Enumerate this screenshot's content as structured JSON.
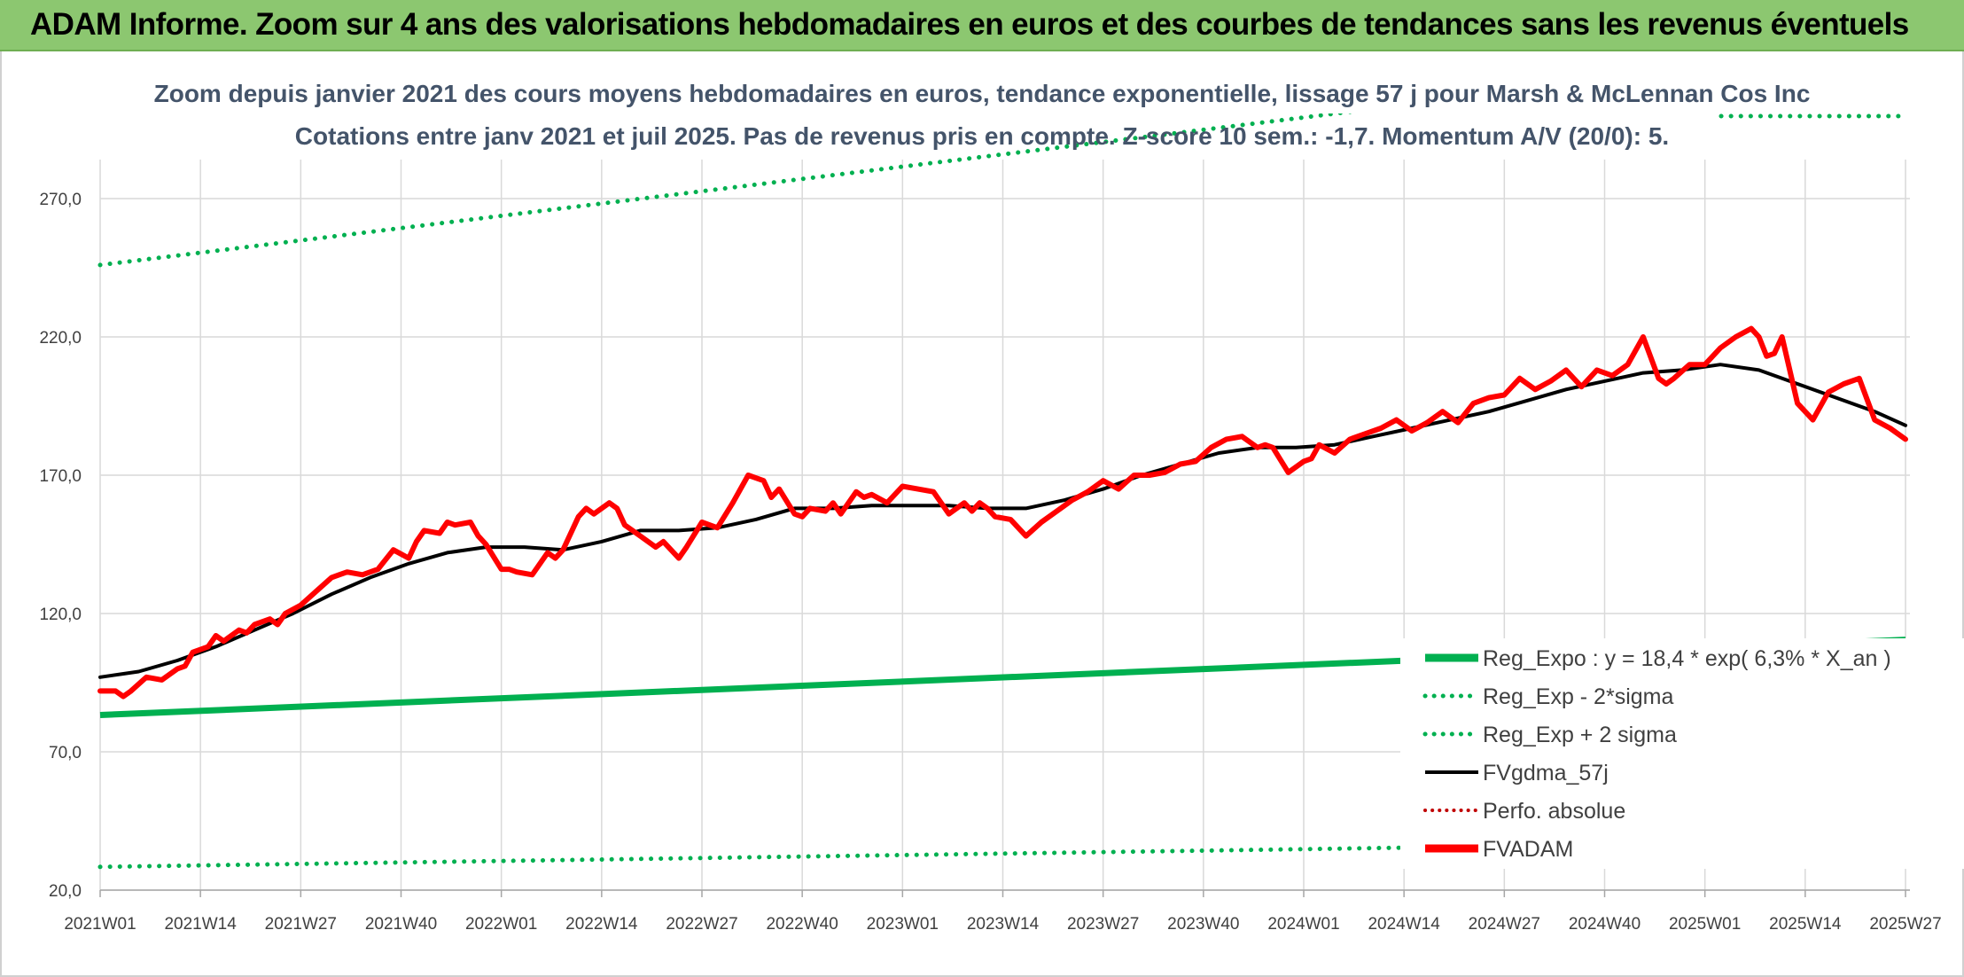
{
  "header": {
    "title": "ADAM Informe. Zoom sur 4 ans des valorisations hebdomadaires en euros et des courbes de tendances sans les revenus éventuels"
  },
  "colors": {
    "trend": "#00b050",
    "band": "#00b050",
    "smooth": "#000000",
    "price": "#ff0000",
    "perfo": "#c00000",
    "grid": "#d9d9d9"
  },
  "chart_data": {
    "type": "line",
    "title": "Zoom depuis janvier 2021 des cours moyens hebdomadaires en euros, tendance exponentielle, lissage 57 j pour Marsh & McLennan Cos Inc",
    "subtitle": "Cotations entre janv 2021 et juil 2025. Pas de revenus pris en compte. Z-score 10 sem.: -1,7. Momentum A/V (20/0): 5.",
    "ylim": [
      20,
      290
    ],
    "y_ticks": [
      20,
      70,
      120,
      170,
      220,
      270
    ],
    "y_tick_labels": [
      "20,0",
      "70,0",
      "120,0",
      "170,0",
      "220,0",
      "270,0"
    ],
    "x_ticks": [
      0,
      13,
      26,
      39,
      52,
      65,
      78,
      91,
      104,
      117,
      130,
      143,
      156,
      169,
      182,
      195,
      208,
      221,
      234
    ],
    "x_tick_labels": [
      "2021W01",
      "2021W14",
      "2021W27",
      "2021W40",
      "2022W01",
      "2022W14",
      "2022W27",
      "2022W40",
      "2023W01",
      "2023W14",
      "2023W27",
      "2023W40",
      "2024W01",
      "2024W14",
      "2024W27",
      "2024W40",
      "2025W01",
      "2025W14",
      "2025W27"
    ],
    "xlim": [
      0,
      234
    ],
    "grid": true,
    "legend_position": "bottom-right",
    "series": [
      {
        "name": "Reg_Expo : y = 18,4 * exp( 6,3% * X_an )",
        "style": "solid-thick",
        "x": [
          0,
          234
        ],
        "values": [
          83.3,
          110.5
        ]
      },
      {
        "name": "Reg_Exp - 2*sigma",
        "style": "dotted",
        "x": [
          0,
          234
        ],
        "values": [
          28.4,
          38.0
        ]
      },
      {
        "name": "Reg_Exp + 2 sigma",
        "style": "dotted",
        "x": [
          0,
          234
        ],
        "values": [
          246,
          326
        ]
      },
      {
        "name": "FVgdma_57j",
        "style": "solid",
        "x": [
          0,
          5,
          10,
          15,
          20,
          25,
          30,
          35,
          40,
          45,
          50,
          55,
          60,
          65,
          70,
          75,
          80,
          85,
          90,
          95,
          100,
          105,
          110,
          115,
          120,
          125,
          130,
          135,
          140,
          145,
          150,
          155,
          160,
          165,
          170,
          175,
          180,
          185,
          190,
          195,
          200,
          205,
          210,
          215,
          220,
          225,
          230,
          234
        ],
        "values": [
          97,
          99,
          103,
          108,
          114,
          120,
          127,
          133,
          138,
          142,
          144,
          144,
          143,
          146,
          150,
          150,
          151,
          154,
          158,
          158,
          159,
          159,
          159,
          158,
          158,
          161,
          165,
          170,
          174,
          178,
          180,
          180,
          181,
          184,
          187,
          190,
          193,
          197,
          201,
          204,
          207,
          208,
          210,
          208,
          203,
          198,
          193,
          188
        ]
      },
      {
        "name": "Perfo. absolue",
        "style": "dotted",
        "x": [],
        "values": []
      },
      {
        "name": "FVADAM",
        "style": "solid-thick",
        "x": [
          0,
          2,
          3,
          4,
          6,
          8,
          10,
          11,
          12,
          14,
          15,
          16,
          18,
          19,
          20,
          22,
          23,
          24,
          26,
          28,
          30,
          32,
          34,
          36,
          38,
          40,
          41,
          42,
          44,
          45,
          46,
          48,
          49,
          50,
          52,
          53,
          54,
          56,
          58,
          59,
          60,
          62,
          63,
          64,
          66,
          67,
          68,
          70,
          72,
          73,
          75,
          76,
          78,
          80,
          82,
          84,
          86,
          87,
          88,
          90,
          91,
          92,
          94,
          95,
          96,
          98,
          99,
          100,
          102,
          104,
          106,
          108,
          110,
          112,
          113,
          114,
          115,
          116,
          118,
          120,
          122,
          124,
          126,
          128,
          130,
          132,
          134,
          136,
          138,
          140,
          142,
          144,
          146,
          148,
          150,
          151,
          152,
          154,
          156,
          157,
          158,
          160,
          162,
          164,
          166,
          168,
          170,
          172,
          174,
          176,
          178,
          180,
          182,
          184,
          186,
          188,
          190,
          192,
          194,
          196,
          198,
          200,
          202,
          203,
          204,
          206,
          208,
          210,
          212,
          214,
          215,
          216,
          217,
          218,
          220,
          222,
          224,
          226,
          228,
          230,
          232,
          234
        ],
        "values": [
          92,
          92,
          90,
          92,
          97,
          96,
          100,
          101,
          106,
          108,
          112,
          110,
          114,
          113,
          116,
          118,
          116,
          120,
          123,
          128,
          133,
          135,
          134,
          136,
          143,
          140,
          146,
          150,
          149,
          153,
          152,
          153,
          148,
          145,
          136,
          136,
          135,
          134,
          142,
          140,
          143,
          155,
          158,
          156,
          160,
          158,
          152,
          148,
          144,
          146,
          140,
          144,
          153,
          151,
          160,
          170,
          168,
          162,
          165,
          156,
          155,
          158,
          157,
          160,
          156,
          164,
          162,
          163,
          160,
          166,
          165,
          164,
          156,
          160,
          157,
          160,
          158,
          155,
          154,
          148,
          153,
          157,
          161,
          164,
          168,
          165,
          170,
          170,
          171,
          174,
          175,
          180,
          183,
          184,
          180,
          181,
          180,
          171,
          175,
          176,
          181,
          178,
          183,
          185,
          187,
          190,
          186,
          189,
          193,
          189,
          196,
          198,
          199,
          205,
          201,
          204,
          208,
          202,
          208,
          206,
          210,
          220,
          205,
          203,
          205,
          210,
          210,
          216,
          220,
          223,
          220,
          213,
          214,
          220,
          196,
          190,
          200,
          203,
          205,
          190,
          187,
          183
        ]
      }
    ]
  },
  "legend": {
    "items": [
      {
        "label": "Reg_Expo : y = 18,4 * exp( 6,3% * X_an )",
        "swatch": "solid-thick-green"
      },
      {
        "label": "Reg_Exp - 2*sigma",
        "swatch": "dotted-green"
      },
      {
        "label": "Reg_Exp + 2 sigma",
        "swatch": "dotted-green"
      },
      {
        "label": "FVgdma_57j",
        "swatch": "solid-black"
      },
      {
        "label": "Perfo. absolue",
        "swatch": "dotted-red"
      },
      {
        "label": "FVADAM",
        "swatch": "solid-thick-red"
      }
    ]
  }
}
